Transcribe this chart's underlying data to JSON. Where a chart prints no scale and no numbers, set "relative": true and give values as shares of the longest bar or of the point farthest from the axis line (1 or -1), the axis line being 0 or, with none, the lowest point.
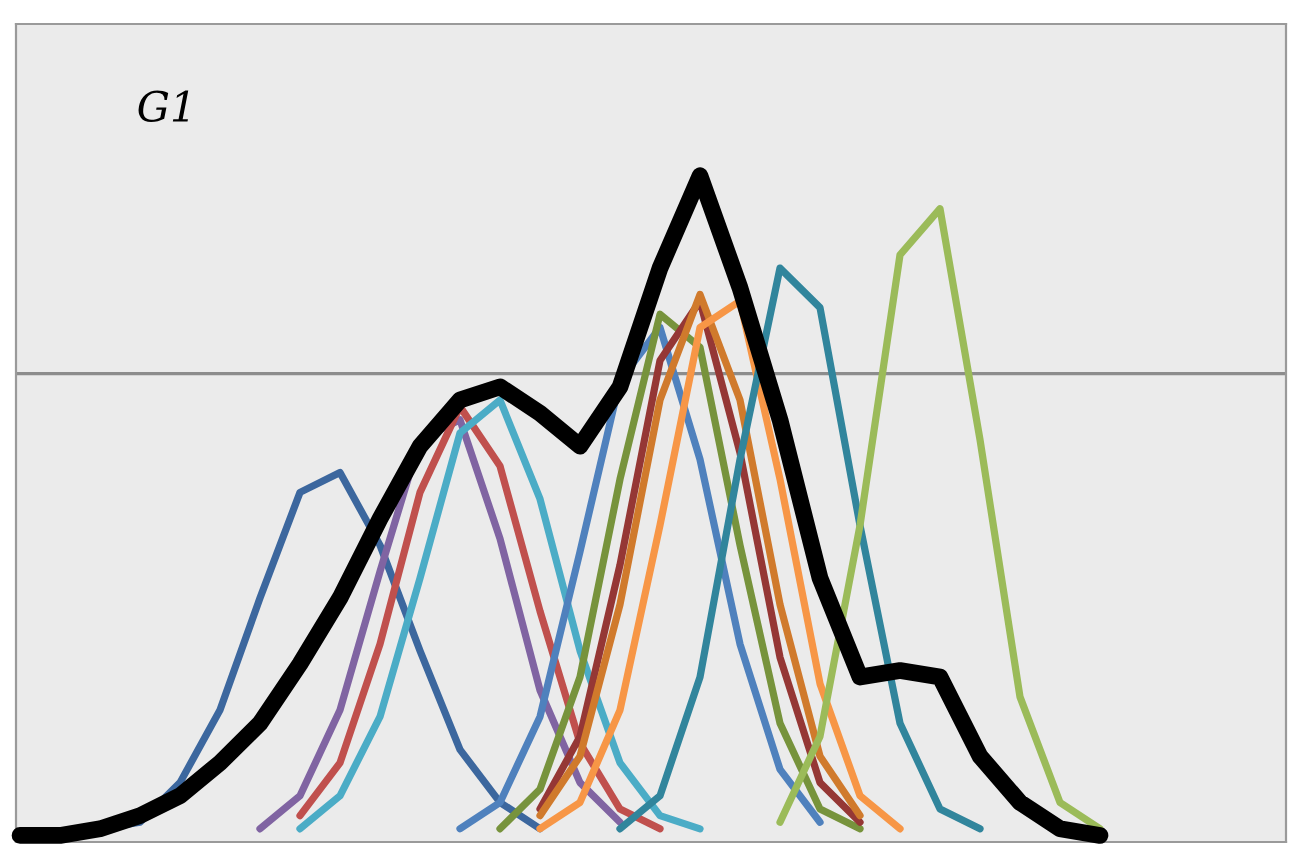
{
  "chart_data": {
    "type": "line",
    "relative": true,
    "marker": "none",
    "line_style": "solid",
    "annotations": [
      "G1"
    ],
    "ref_lines": [
      {
        "axis": "y",
        "value": 0.7,
        "color": "#8c8c8c"
      }
    ],
    "categories": [
      null,
      null,
      null,
      null,
      null,
      null,
      null,
      null,
      null,
      null,
      null,
      null,
      null,
      null,
      null,
      null,
      null,
      null,
      null,
      null,
      null,
      null,
      null,
      null,
      null,
      null,
      null,
      null,
      null,
      null,
      null,
      null
    ],
    "series": [
      {
        "color": "#3c679e",
        "values": [
          null,
          null,
          0.01,
          0.02,
          0.08,
          0.19,
          0.36,
          0.52,
          0.55,
          0.44,
          0.28,
          0.13,
          0.05,
          0.01,
          null,
          null,
          null,
          null,
          null,
          null,
          null,
          null,
          null,
          null,
          null,
          null,
          null,
          null,
          null,
          null,
          null,
          null
        ]
      },
      {
        "color": "#8064a2",
        "values": [
          null,
          null,
          null,
          null,
          null,
          null,
          0.01,
          0.06,
          0.19,
          0.4,
          0.6,
          0.63,
          0.45,
          0.22,
          0.08,
          0.02,
          null,
          null,
          null,
          null,
          null,
          null,
          null,
          null,
          null,
          null,
          null,
          null,
          null,
          null,
          null,
          null
        ]
      },
      {
        "color": "#c0504d",
        "values": [
          null,
          null,
          null,
          null,
          null,
          null,
          null,
          0.03,
          0.11,
          0.29,
          0.52,
          0.65,
          0.56,
          0.34,
          0.14,
          0.04,
          0.01,
          null,
          null,
          null,
          null,
          null,
          null,
          null,
          null,
          null,
          null,
          null,
          null,
          null,
          null,
          null
        ]
      },
      {
        "color": "#4bacc6",
        "values": [
          null,
          null,
          null,
          null,
          null,
          null,
          null,
          0.01,
          0.06,
          0.18,
          0.39,
          0.61,
          0.66,
          0.51,
          0.28,
          0.11,
          0.03,
          0.01,
          null,
          null,
          null,
          null,
          null,
          null,
          null,
          null,
          null,
          null,
          null,
          null,
          null,
          null
        ]
      },
      {
        "color": "#4f81bd",
        "values": [
          null,
          null,
          null,
          null,
          null,
          null,
          null,
          null,
          null,
          null,
          null,
          0.01,
          0.05,
          0.18,
          0.43,
          0.69,
          0.77,
          0.57,
          0.29,
          0.1,
          0.02,
          null,
          null,
          null,
          null,
          null,
          null,
          null,
          null,
          null,
          null,
          null
        ]
      },
      {
        "color": "#77933c",
        "values": [
          null,
          null,
          null,
          null,
          null,
          null,
          null,
          null,
          null,
          null,
          null,
          null,
          0.01,
          0.07,
          0.24,
          0.54,
          0.79,
          0.74,
          0.44,
          0.17,
          0.04,
          0.01,
          null,
          null,
          null,
          null,
          null,
          null,
          null,
          null,
          null,
          null
        ]
      },
      {
        "color": "#953735",
        "values": [
          null,
          null,
          null,
          null,
          null,
          null,
          null,
          null,
          null,
          null,
          null,
          null,
          null,
          0.04,
          0.15,
          0.41,
          0.72,
          0.81,
          0.58,
          0.27,
          0.08,
          0.02,
          null,
          null,
          null,
          null,
          null,
          null,
          null,
          null,
          null,
          null
        ]
      },
      {
        "color": "#d07a2c",
        "values": [
          null,
          null,
          null,
          null,
          null,
          null,
          null,
          null,
          null,
          null,
          null,
          null,
          null,
          0.03,
          0.12,
          0.35,
          0.66,
          0.82,
          0.66,
          0.35,
          0.12,
          0.03,
          null,
          null,
          null,
          null,
          null,
          null,
          null,
          null,
          null,
          null
        ]
      },
      {
        "color": "#f79646",
        "values": [
          null,
          null,
          null,
          null,
          null,
          null,
          null,
          null,
          null,
          null,
          null,
          null,
          null,
          0.01,
          0.05,
          0.19,
          0.47,
          0.77,
          0.81,
          0.54,
          0.23,
          0.06,
          0.01,
          null,
          null,
          null,
          null,
          null,
          null,
          null,
          null,
          null
        ]
      },
      {
        "color": "#31859c",
        "values": [
          null,
          null,
          null,
          null,
          null,
          null,
          null,
          null,
          null,
          null,
          null,
          null,
          null,
          null,
          null,
          0.01,
          0.06,
          0.24,
          0.57,
          0.86,
          0.8,
          0.47,
          0.17,
          0.04,
          0.01,
          null,
          null,
          null,
          null,
          null,
          null,
          null
        ]
      },
      {
        "color": "#9bbb59",
        "values": [
          null,
          null,
          null,
          null,
          null,
          null,
          null,
          null,
          null,
          null,
          null,
          null,
          null,
          null,
          null,
          null,
          null,
          null,
          null,
          0.02,
          0.15,
          0.47,
          0.88,
          0.95,
          0.6,
          0.21,
          0.05,
          0.01,
          null,
          null,
          null,
          null
        ]
      },
      {
        "color": "#000000",
        "values": [
          0,
          0,
          0.01,
          0.03,
          0.06,
          0.11,
          0.17,
          0.26,
          0.36,
          0.48,
          0.59,
          0.66,
          0.68,
          0.64,
          0.59,
          0.68,
          0.86,
          1.0,
          0.83,
          0.63,
          0.39,
          0.24,
          0.25,
          0.24,
          0.12,
          0.05,
          0.01,
          0,
          null,
          null,
          null,
          null
        ]
      }
    ]
  }
}
